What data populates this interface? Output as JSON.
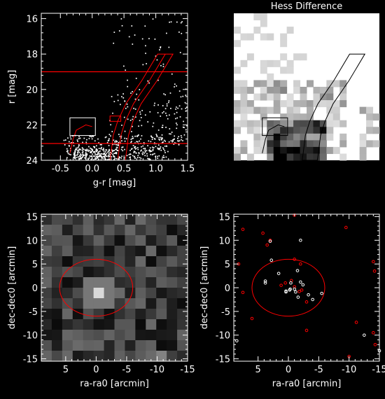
{
  "chart_data": [
    {
      "type": "scatter",
      "panel": "cmd",
      "title": "",
      "xlabel": "g-r [mag]",
      "ylabel": "r [mag]",
      "xlim": [
        -0.8,
        1.5
      ],
      "ylim": [
        24,
        15.7
      ],
      "y_inverted": true,
      "xticks": [
        "-0.5",
        "0.0",
        "0.5",
        "1.0",
        "1.5"
      ],
      "xtick_values": [
        -0.5,
        0.0,
        0.5,
        1.0,
        1.5
      ],
      "yticks": [
        "16",
        "18",
        "20",
        "22",
        "24"
      ],
      "ytick_values": [
        16,
        18,
        20,
        22,
        24
      ],
      "hlines": [
        19.0,
        23.05
      ],
      "hline_color": "#ff0000",
      "box": {
        "x0": -0.35,
        "x1": 0.05,
        "y0": 21.6,
        "y1": 22.6,
        "color": "#ffffff"
      },
      "small_red_box": {
        "x0": 0.28,
        "x1": 0.45,
        "y0": 21.5,
        "y1": 21.8,
        "color": "#ff0000"
      },
      "isochrone_color": "#ff0000",
      "isochrone_curve": [
        [
          1.15,
          18.0
        ],
        [
          0.9,
          19.5
        ],
        [
          0.65,
          20.8
        ],
        [
          0.52,
          21.8
        ],
        [
          0.45,
          22.6
        ],
        [
          0.42,
          23.5
        ],
        [
          0.4,
          24.0
        ]
      ],
      "isochrone_width_mag": 0.12,
      "hb_branch": [
        [
          -0.35,
          23.6
        ],
        [
          -0.3,
          22.8
        ],
        [
          -0.25,
          22.3
        ],
        [
          -0.1,
          22.0
        ],
        [
          0.0,
          22.1
        ]
      ],
      "star_color": "#ffffff"
    },
    {
      "type": "heatmap",
      "panel": "hess",
      "title": "Hess Difference",
      "xlabel": "",
      "ylabel": "",
      "xlim": [
        -0.8,
        1.5
      ],
      "ylim": [
        24,
        15.7
      ],
      "colormap": "grayscale-inverted",
      "box": {
        "x0": -0.35,
        "x1": 0.05,
        "y0": 21.6,
        "y1": 22.6
      },
      "outline_color": "#000000"
    },
    {
      "type": "heatmap",
      "panel": "density",
      "title": "",
      "xlabel": "ra-ra0 [arcmin]",
      "ylabel": "dec-dec0 [arcmin]",
      "xlim": [
        9,
        -15
      ],
      "ylim": [
        -15.5,
        15.5
      ],
      "xticks": [
        "5",
        "0",
        "-5",
        "-10",
        "-15"
      ],
      "xtick_values": [
        5,
        0,
        -5,
        -10,
        -15
      ],
      "yticks": [
        "15",
        "10",
        "5",
        "0",
        "-5",
        "-10",
        "-15"
      ],
      "ytick_values": [
        15,
        10,
        5,
        0,
        -5,
        -10,
        -15
      ],
      "circle": {
        "cx": 0,
        "cy": 0,
        "r": 6,
        "color": "#ff0000"
      },
      "peak": {
        "x": 0,
        "y": 0
      }
    },
    {
      "type": "scatter",
      "panel": "positions",
      "title": "",
      "xlabel": "ra-ra0 [arcmin]",
      "ylabel": "dec-dec0 [arcmin]",
      "xlim": [
        9,
        -15
      ],
      "ylim": [
        -15.5,
        15.5
      ],
      "xticks": [
        "5",
        "0",
        "-5",
        "-10",
        "-15"
      ],
      "xtick_values": [
        5,
        0,
        -5,
        -10,
        -15
      ],
      "yticks": [
        "15",
        "10",
        "5",
        "0",
        "-5",
        "-10",
        "-15"
      ],
      "ytick_values": [
        15,
        10,
        5,
        0,
        -5,
        -10,
        -15
      ],
      "circle": {
        "cx": 0,
        "cy": 0,
        "r": 6,
        "color": "#ff0000"
      },
      "series": [
        {
          "color": "#ff0000",
          "points": [
            [
              -1,
              15.3
            ],
            [
              7.5,
              12.3
            ],
            [
              4.2,
              11.5
            ],
            [
              -9.5,
              12.7
            ],
            [
              3,
              10
            ],
            [
              3.5,
              9
            ],
            [
              8.2,
              5
            ],
            [
              -1,
              6
            ],
            [
              -2,
              5
            ],
            [
              -14,
              5.5
            ],
            [
              -14.2,
              3.5
            ],
            [
              7.5,
              -1
            ],
            [
              0.5,
              1
            ],
            [
              1.2,
              0.5
            ],
            [
              -0.5,
              1.5
            ],
            [
              -1,
              0.2
            ],
            [
              -1.8,
              -0.8
            ],
            [
              -2.2,
              -0.5
            ],
            [
              -3,
              -3
            ],
            [
              6,
              -6.5
            ],
            [
              -11.2,
              -7.3
            ],
            [
              -3,
              -9
            ],
            [
              -14,
              -9.5
            ],
            [
              -14.3,
              -12
            ],
            [
              -10,
              -14.5
            ]
          ]
        },
        {
          "color": "#ffffff",
          "points": [
            [
              -2,
              10
            ],
            [
              3,
              9.8
            ],
            [
              2.8,
              5.8
            ],
            [
              1.6,
              3
            ],
            [
              -1.5,
              3.6
            ],
            [
              3.8,
              1.4
            ],
            [
              3.8,
              1.0
            ],
            [
              -0.4,
              1.0
            ],
            [
              -2,
              1.2
            ],
            [
              -2.4,
              0.6
            ],
            [
              -1,
              -0.3
            ],
            [
              -0.3,
              -0.3
            ],
            [
              -0.2,
              -0.5
            ],
            [
              0.4,
              -0.7
            ],
            [
              0.4,
              -0.9
            ],
            [
              -1.2,
              -0.9
            ],
            [
              -1.6,
              -2
            ],
            [
              -3.3,
              -1.5
            ],
            [
              -5.5,
              -1.2
            ],
            [
              -4,
              -2.5
            ],
            [
              -12.5,
              -10
            ],
            [
              8.5,
              -11.2
            ],
            [
              -15,
              -13.3
            ]
          ]
        }
      ]
    }
  ]
}
